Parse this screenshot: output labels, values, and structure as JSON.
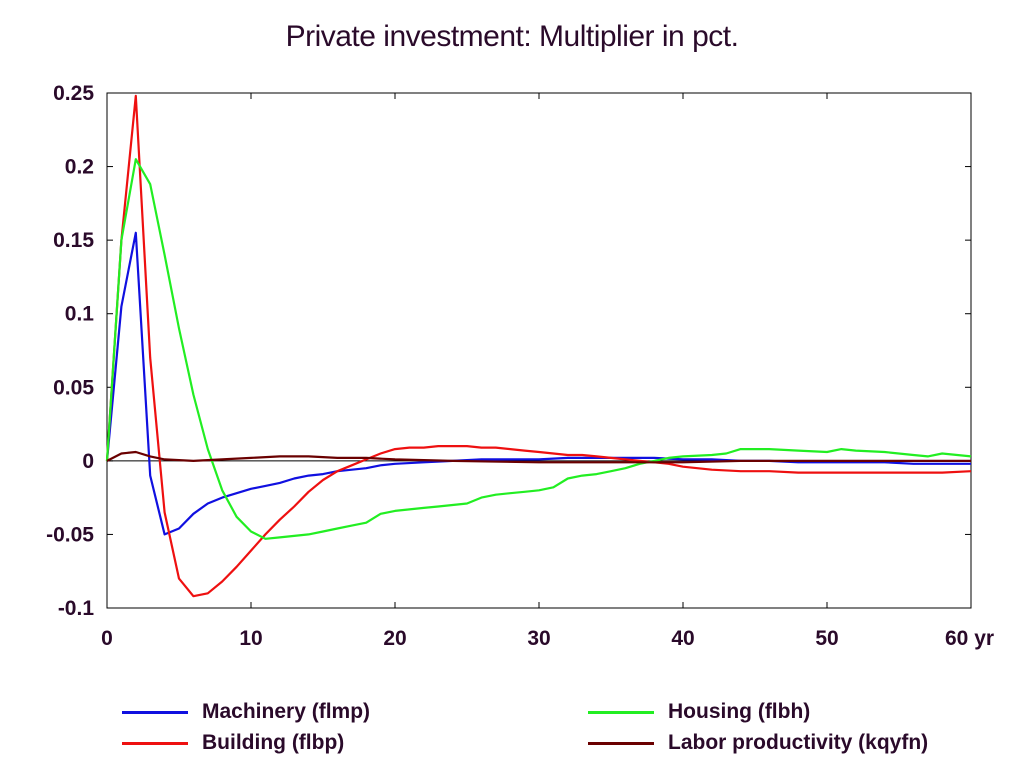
{
  "chart_data": {
    "type": "line",
    "title": "Private investment: Multiplier in pct.",
    "xlabel": "",
    "ylabel": "",
    "xlim": [
      0,
      60
    ],
    "ylim": [
      -0.1,
      0.25
    ],
    "x_ticks": [
      {
        "value": 0,
        "label": "0"
      },
      {
        "value": 10,
        "label": "10"
      },
      {
        "value": 20,
        "label": "20"
      },
      {
        "value": 30,
        "label": "30"
      },
      {
        "value": 40,
        "label": "40"
      },
      {
        "value": 50,
        "label": "50"
      },
      {
        "value": 60,
        "label": "60 yr"
      }
    ],
    "y_ticks": [
      {
        "value": 0.25,
        "label": "0.25"
      },
      {
        "value": 0.2,
        "label": "0.2"
      },
      {
        "value": 0.15,
        "label": "0.15"
      },
      {
        "value": 0.1,
        "label": "0.1"
      },
      {
        "value": 0.05,
        "label": "0.05"
      },
      {
        "value": 0,
        "label": "0"
      },
      {
        "value": -0.05,
        "label": "-0.05"
      },
      {
        "value": -0.1,
        "label": "-0.1"
      }
    ],
    "grid": false,
    "zero_line": true,
    "legend_position": "bottom",
    "series": [
      {
        "name": "Machinery (flmp)",
        "color": "#1010e0",
        "points": [
          [
            0,
            0
          ],
          [
            1,
            0.105
          ],
          [
            2,
            0.155
          ],
          [
            3,
            -0.01
          ],
          [
            4,
            -0.05
          ],
          [
            5,
            -0.046
          ],
          [
            6,
            -0.036
          ],
          [
            7,
            -0.029
          ],
          [
            8,
            -0.025
          ],
          [
            9,
            -0.022
          ],
          [
            10,
            -0.019
          ],
          [
            11,
            -0.017
          ],
          [
            12,
            -0.015
          ],
          [
            13,
            -0.012
          ],
          [
            14,
            -0.01
          ],
          [
            15,
            -0.009
          ],
          [
            16,
            -0.007
          ],
          [
            17,
            -0.006
          ],
          [
            18,
            -0.005
          ],
          [
            19,
            -0.003
          ],
          [
            20,
            -0.002
          ],
          [
            22,
            -0.001
          ],
          [
            24,
            0
          ],
          [
            26,
            0.001
          ],
          [
            28,
            0.001
          ],
          [
            30,
            0.001
          ],
          [
            32,
            0.002
          ],
          [
            34,
            0.002
          ],
          [
            36,
            0.002
          ],
          [
            38,
            0.002
          ],
          [
            40,
            0.001
          ],
          [
            42,
            0.001
          ],
          [
            44,
            0
          ],
          [
            46,
            0
          ],
          [
            48,
            -0.001
          ],
          [
            50,
            -0.001
          ],
          [
            52,
            -0.001
          ],
          [
            54,
            -0.001
          ],
          [
            56,
            -0.002
          ],
          [
            58,
            -0.002
          ],
          [
            60,
            -0.002
          ]
        ]
      },
      {
        "name": "Building (flbp)",
        "color": "#ee1010",
        "points": [
          [
            0,
            0
          ],
          [
            1,
            0.15
          ],
          [
            2,
            0.248
          ],
          [
            3,
            0.07
          ],
          [
            4,
            -0.035
          ],
          [
            5,
            -0.08
          ],
          [
            6,
            -0.092
          ],
          [
            7,
            -0.09
          ],
          [
            8,
            -0.082
          ],
          [
            9,
            -0.072
          ],
          [
            10,
            -0.061
          ],
          [
            11,
            -0.05
          ],
          [
            12,
            -0.04
          ],
          [
            13,
            -0.031
          ],
          [
            14,
            -0.021
          ],
          [
            15,
            -0.013
          ],
          [
            16,
            -0.007
          ],
          [
            17,
            -0.003
          ],
          [
            18,
            0.001
          ],
          [
            19,
            0.005
          ],
          [
            20,
            0.008
          ],
          [
            21,
            0.009
          ],
          [
            22,
            0.009
          ],
          [
            23,
            0.01
          ],
          [
            24,
            0.01
          ],
          [
            25,
            0.01
          ],
          [
            26,
            0.009
          ],
          [
            27,
            0.009
          ],
          [
            28,
            0.008
          ],
          [
            29,
            0.007
          ],
          [
            30,
            0.006
          ],
          [
            31,
            0.005
          ],
          [
            32,
            0.004
          ],
          [
            33,
            0.004
          ],
          [
            34,
            0.003
          ],
          [
            35,
            0.002
          ],
          [
            36,
            0.001
          ],
          [
            37,
            0
          ],
          [
            38,
            -0.001
          ],
          [
            39,
            -0.002
          ],
          [
            40,
            -0.004
          ],
          [
            42,
            -0.006
          ],
          [
            44,
            -0.007
          ],
          [
            46,
            -0.007
          ],
          [
            48,
            -0.008
          ],
          [
            50,
            -0.008
          ],
          [
            52,
            -0.008
          ],
          [
            54,
            -0.008
          ],
          [
            56,
            -0.008
          ],
          [
            58,
            -0.008
          ],
          [
            60,
            -0.007
          ]
        ]
      },
      {
        "name": "Housing (flbh)",
        "color": "#22ee22",
        "points": [
          [
            0,
            0
          ],
          [
            1,
            0.15
          ],
          [
            2,
            0.205
          ],
          [
            3,
            0.188
          ],
          [
            4,
            0.14
          ],
          [
            5,
            0.09
          ],
          [
            6,
            0.045
          ],
          [
            7,
            0.008
          ],
          [
            8,
            -0.02
          ],
          [
            9,
            -0.038
          ],
          [
            10,
            -0.048
          ],
          [
            11,
            -0.053
          ],
          [
            12,
            -0.052
          ],
          [
            13,
            -0.051
          ],
          [
            14,
            -0.05
          ],
          [
            15,
            -0.048
          ],
          [
            16,
            -0.046
          ],
          [
            17,
            -0.044
          ],
          [
            18,
            -0.042
          ],
          [
            19,
            -0.036
          ],
          [
            20,
            -0.034
          ],
          [
            21,
            -0.033
          ],
          [
            22,
            -0.032
          ],
          [
            23,
            -0.031
          ],
          [
            24,
            -0.03
          ],
          [
            25,
            -0.029
          ],
          [
            26,
            -0.025
          ],
          [
            27,
            -0.023
          ],
          [
            28,
            -0.022
          ],
          [
            29,
            -0.021
          ],
          [
            30,
            -0.02
          ],
          [
            31,
            -0.018
          ],
          [
            32,
            -0.012
          ],
          [
            33,
            -0.01
          ],
          [
            34,
            -0.009
          ],
          [
            35,
            -0.007
          ],
          [
            36,
            -0.005
          ],
          [
            37,
            -0.002
          ],
          [
            38,
            0
          ],
          [
            39,
            0.002
          ],
          [
            40,
            0.003
          ],
          [
            42,
            0.004
          ],
          [
            43,
            0.005
          ],
          [
            44,
            0.008
          ],
          [
            46,
            0.008
          ],
          [
            48,
            0.007
          ],
          [
            50,
            0.006
          ],
          [
            51,
            0.008
          ],
          [
            52,
            0.007
          ],
          [
            54,
            0.006
          ],
          [
            56,
            0.004
          ],
          [
            57,
            0.003
          ],
          [
            58,
            0.005
          ],
          [
            60,
            0.003
          ]
        ]
      },
      {
        "name": "Labor productivity (kqyfn)",
        "color": "#6a0000",
        "points": [
          [
            0,
            0
          ],
          [
            1,
            0.005
          ],
          [
            2,
            0.006
          ],
          [
            3,
            0.003
          ],
          [
            4,
            0.001
          ],
          [
            6,
            0
          ],
          [
            8,
            0.001
          ],
          [
            10,
            0.002
          ],
          [
            12,
            0.003
          ],
          [
            14,
            0.003
          ],
          [
            16,
            0.002
          ],
          [
            18,
            0.002
          ],
          [
            20,
            0.001
          ],
          [
            24,
            0
          ],
          [
            30,
            -0.001
          ],
          [
            36,
            -0.001
          ],
          [
            40,
            -0.001
          ],
          [
            44,
            0
          ],
          [
            50,
            0
          ],
          [
            56,
            0
          ],
          [
            60,
            0
          ]
        ]
      }
    ]
  }
}
